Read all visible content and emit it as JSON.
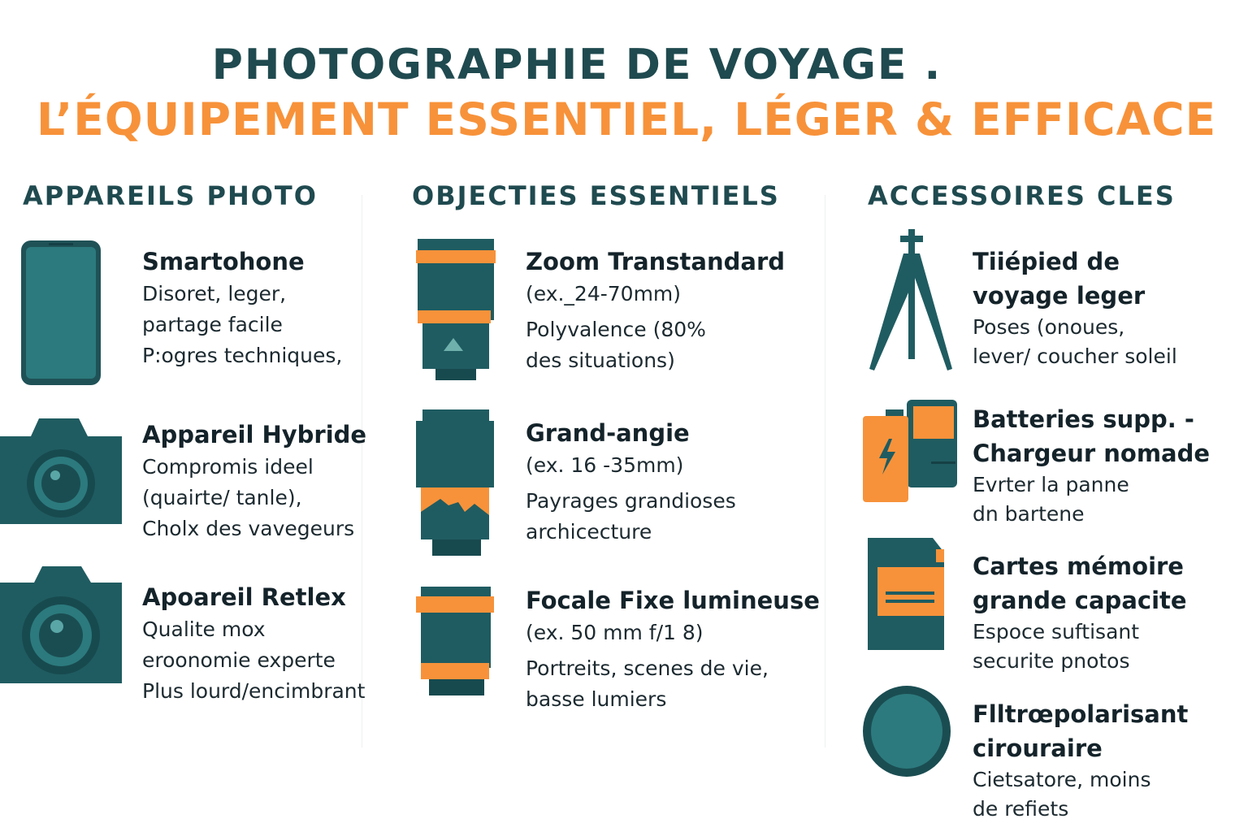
{
  "title": {
    "line1": "PHOTOGRAPHIE DE VOYAGE .",
    "line2": "L’ÉQUIPEMENT ESSENTIEL, LÉGER & EFFICACE"
  },
  "colors": {
    "teal": "#2a6b70",
    "dark_teal": "#1f4a4f",
    "orange": "#f7923a"
  },
  "columns": [
    {
      "heading": "APPAREILS PHOTO",
      "items": [
        {
          "icon": "smartphone-icon",
          "title": "Smartohone",
          "lines": [
            "Disoret, leger,",
            "partage facile",
            "P:ogres techniques,"
          ]
        },
        {
          "icon": "mirrorless-camera-icon",
          "title": "Appareil Hybride",
          "lines": [
            "Compromis ideel",
            "(quairte/ tanle),",
            "Cholx des vavegeurs"
          ]
        },
        {
          "icon": "dslr-camera-icon",
          "title": "Apoareil Retlex",
          "lines": [
            "Qualite mox",
            "eroonomie expertе",
            "Plus lourd/encimbrant"
          ]
        }
      ]
    },
    {
      "heading": "OBJECTIES ESSENTIELS",
      "items": [
        {
          "icon": "zoom-lens-icon",
          "title": "Zoom Transtandard",
          "lines": [
            "(ex._24-70mm)",
            "Polyvalence (80%",
            "des situations)"
          ]
        },
        {
          "icon": "wide-angle-lens-icon",
          "title": "Grand-angie",
          "lines": [
            "(ex. 16 -35mm)",
            "Payrages grandioses",
            "archicecture"
          ]
        },
        {
          "icon": "prime-lens-icon",
          "title": "Focale Fixe lumineuse",
          "lines": [
            "(ex. 50 mm f/1 8)",
            "Portreits, scenes de vie,",
            "basse lumiers"
          ]
        }
      ]
    },
    {
      "heading": "ACCESSOIRES CLES",
      "items": [
        {
          "icon": "tripod-icon",
          "title": "Tiiépied de voyage leger",
          "lines": [
            "Poses (onoues,",
            "lever/ coucher soleil"
          ]
        },
        {
          "icon": "battery-charger-icon",
          "title": "Batteries supp. - Chargeur nomade",
          "lines": [
            "Evrter la panne",
            "dn bartene"
          ]
        },
        {
          "icon": "memory-card-icon",
          "title": "Cartes mémoire grande capacite",
          "lines": [
            "Espoce suftisant",
            "securite pnotos"
          ]
        },
        {
          "icon": "polarizing-filter-icon",
          "title": "Flltrœpolarisant cirouraire",
          "lines": [
            "Cietsatore, moins",
            "de refiets"
          ]
        }
      ]
    }
  ]
}
